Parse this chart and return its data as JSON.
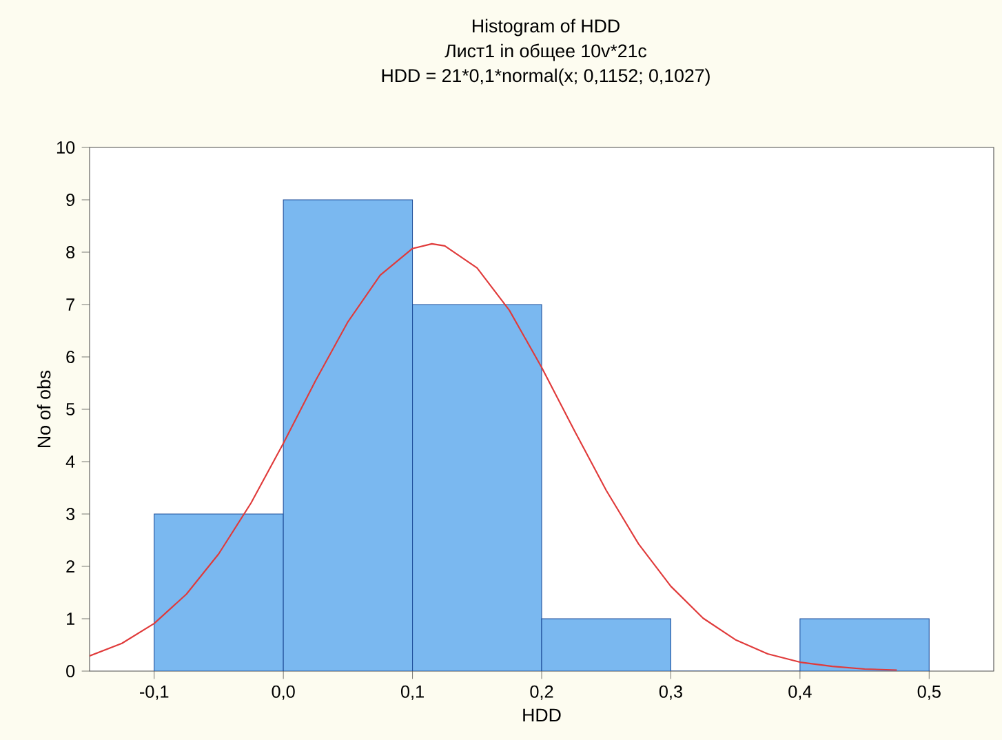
{
  "chart_data": {
    "type": "histogram",
    "title": "Histogram of HDD",
    "subtitle": "Лист1 in общее 10v*21c",
    "annotations": [
      "HDD = 21*0,1*normal(x; 0,1152; 0,1027)"
    ],
    "xlabel": "HDD",
    "ylabel": "No of obs",
    "bins": [
      -0.1,
      0.0,
      0.1,
      0.2,
      0.3,
      0.4,
      0.5
    ],
    "values": [
      3,
      9,
      7,
      1,
      0,
      1
    ],
    "color": "#7ab8f0",
    "series": [
      {
        "type": "line",
        "color": "#e03a3a",
        "x": [
          -0.15,
          -0.125,
          -0.1,
          -0.075,
          -0.05,
          -0.025,
          0.0,
          0.025,
          0.05,
          0.075,
          0.1,
          0.115,
          0.125,
          0.15,
          0.175,
          0.2,
          0.225,
          0.25,
          0.275,
          0.3,
          0.325,
          0.35,
          0.375,
          0.4,
          0.425,
          0.45,
          0.475
        ],
        "values": [
          0.29,
          0.53,
          0.91,
          1.47,
          2.24,
          3.21,
          4.35,
          5.55,
          6.67,
          7.56,
          8.07,
          8.16,
          8.12,
          7.7,
          6.89,
          5.8,
          4.61,
          3.45,
          2.43,
          1.62,
          1.01,
          0.6,
          0.33,
          0.17,
          0.09,
          0.04,
          0.02
        ]
      }
    ],
    "xlim": [
      -0.15,
      0.55
    ],
    "ylim": [
      0,
      10
    ],
    "xticks": [
      {
        "value": -0.1,
        "label": "-0,1"
      },
      {
        "value": 0.0,
        "label": "0,0"
      },
      {
        "value": 0.1,
        "label": "0,1"
      },
      {
        "value": 0.2,
        "label": "0,2"
      },
      {
        "value": 0.3,
        "label": "0,3"
      },
      {
        "value": 0.4,
        "label": "0,4"
      },
      {
        "value": 0.5,
        "label": "0,5"
      }
    ],
    "yticks": [
      0,
      1,
      2,
      3,
      4,
      5,
      6,
      7,
      8,
      9,
      10
    ]
  }
}
